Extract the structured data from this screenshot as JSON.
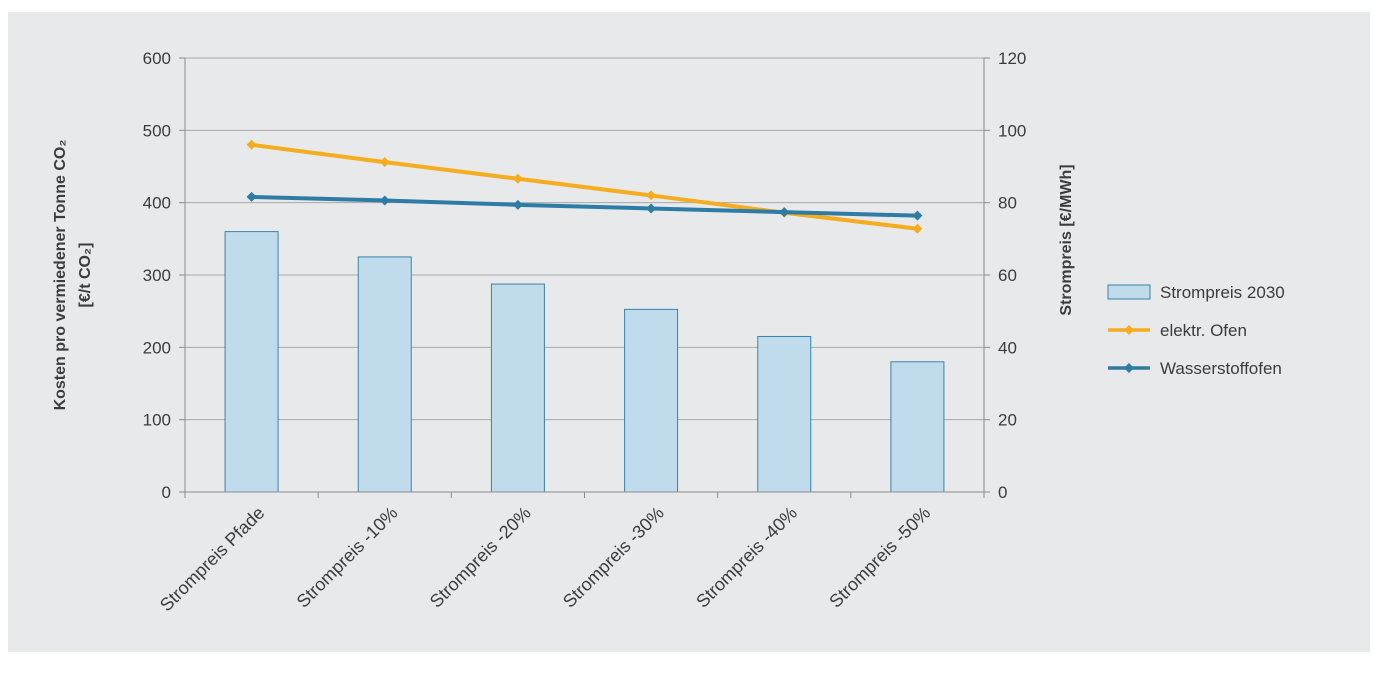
{
  "chart_data": {
    "type": "bar",
    "categories": [
      "Strompreis Pfade",
      "Strompreis -10%",
      "Strompreis -20%",
      "Strompreis -30%",
      "Strompreis -40%",
      "Strompreis -50%"
    ],
    "y_left": {
      "label_line1": "Kosten pro vermiedener Tonne CO₂",
      "label_line2": "[€/t CO₂]",
      "ylim": [
        0,
        600
      ],
      "ticks": [
        0,
        100,
        200,
        300,
        400,
        500,
        600
      ]
    },
    "y_right": {
      "label": "Strompreis [€/MWh]",
      "ylim": [
        0,
        120
      ],
      "ticks": [
        0,
        20,
        40,
        60,
        80,
        100,
        120
      ]
    },
    "series": [
      {
        "name": "Strompreis 2030",
        "type": "bar",
        "axis": "right",
        "color": "#c0dbec",
        "edge_color": "#3a84aa",
        "values": [
          72,
          65,
          57.5,
          50.5,
          43,
          36
        ]
      },
      {
        "name": "elektr. Ofen",
        "type": "line",
        "axis": "left",
        "color": "#f5ac1e",
        "values": [
          480,
          456,
          433,
          410,
          386,
          364
        ]
      },
      {
        "name": "Wasserstoffofen",
        "type": "line",
        "axis": "left",
        "color": "#2e7ca6",
        "values": [
          408,
          403,
          397,
          392,
          387,
          382
        ]
      }
    ],
    "grid": true,
    "legend_position": "right"
  }
}
